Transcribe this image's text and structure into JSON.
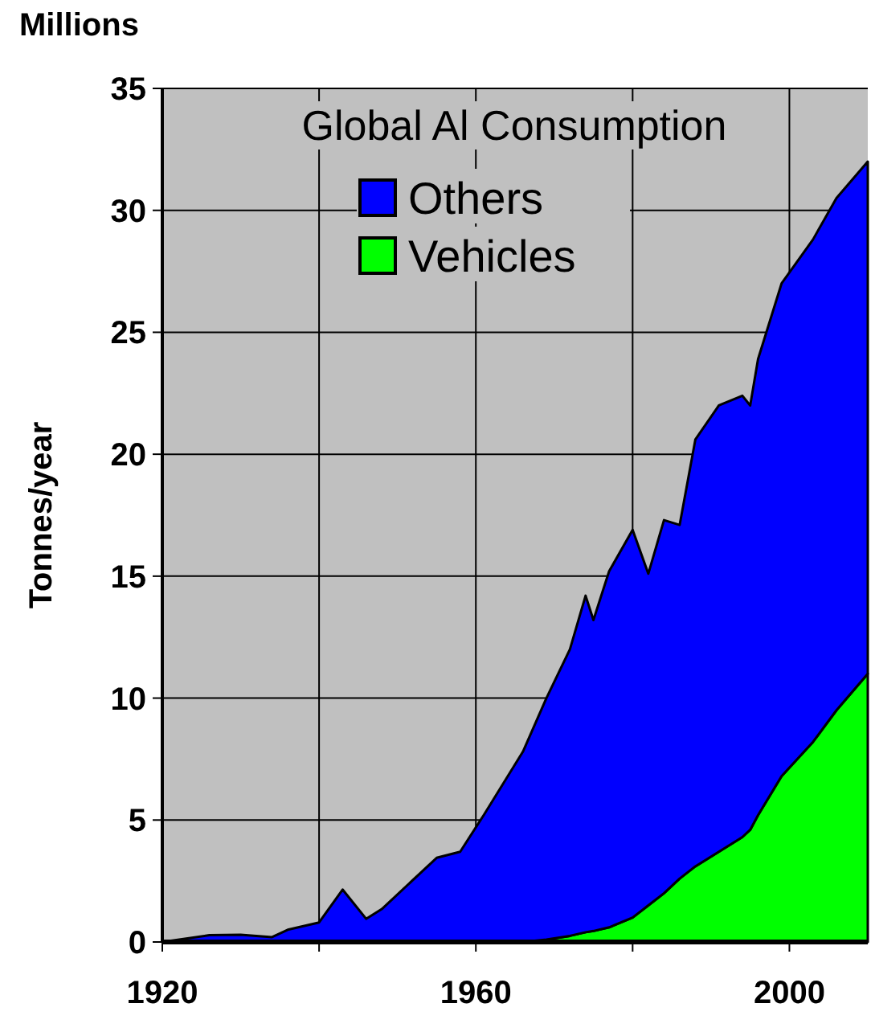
{
  "chart_data": {
    "type": "area",
    "stacked": true,
    "title": "Global Al Consumption",
    "ylabel": "Tonnes/year",
    "annotations": [
      "Millions"
    ],
    "x": [
      1920,
      1926,
      1930,
      1934,
      1936,
      1940,
      1943,
      1946,
      1948,
      1955,
      1958,
      1961,
      1966,
      1969,
      1972,
      1974,
      1975,
      1977,
      1980,
      1982,
      1984,
      1986,
      1988,
      1991,
      1994,
      1995,
      1996,
      1999,
      2003,
      2006,
      2010
    ],
    "series": [
      {
        "name": "Vehicles",
        "color": "#00ff00",
        "values": [
          0,
          0,
          0,
          0,
          0,
          0,
          0,
          0,
          0,
          0,
          0,
          0,
          0,
          0.1,
          0.25,
          0.4,
          0.45,
          0.6,
          1.0,
          1.5,
          2.0,
          2.6,
          3.1,
          3.7,
          4.3,
          4.6,
          5.2,
          6.8,
          8.2,
          9.5,
          11.0
        ]
      },
      {
        "name": "Others",
        "color": "#0000ff",
        "values": [
          0,
          0.28,
          0.3,
          0.2,
          0.5,
          0.8,
          2.15,
          0.95,
          1.35,
          3.45,
          3.7,
          5.2,
          7.8,
          9.9,
          11.75,
          13.8,
          12.75,
          14.6,
          15.9,
          13.6,
          15.3,
          14.5,
          17.5,
          18.3,
          18.1,
          17.4,
          18.7,
          20.2,
          20.6,
          21.0,
          21.0
        ]
      }
    ],
    "xlim": [
      1920,
      2010
    ],
    "xticks": [
      1920,
      {
        "value": 1940,
        "label": null
      },
      1960,
      {
        "value": 1980,
        "label": null
      },
      2000
    ],
    "ylim": [
      0,
      35
    ],
    "yticks": [
      0,
      5,
      10,
      15,
      20,
      25,
      30,
      35
    ],
    "grid": true,
    "legend": "top"
  }
}
